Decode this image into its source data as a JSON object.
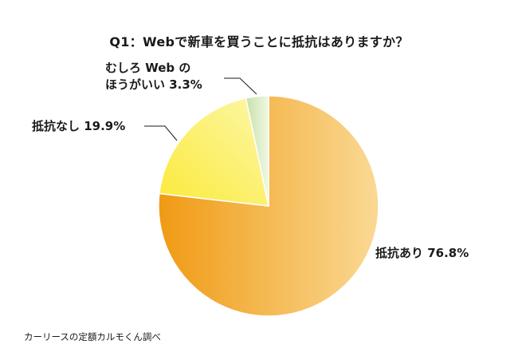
{
  "chart_data": {
    "type": "pie",
    "title": "Q1：Webで新車を買うことに抵抗はありますか？",
    "slices": [
      {
        "category": "抵抗あり",
        "value": 76.8,
        "label": "抵抗あり 76.8%",
        "color_start": "#f09a14",
        "color_end": "#fad994"
      },
      {
        "category": "抵抗なし",
        "value": 19.9,
        "label": "抵抗なし 19.9%",
        "color_start": "#fbea3a",
        "color_end": "#fcf7a8"
      },
      {
        "category": "むしろWebのほうがいい",
        "value": 3.3,
        "label_line1": "むしろ Web の",
        "label_line2": "ほうがいい 3.3%",
        "color_start": "#c6e0a8",
        "color_end": "#f0f8e4"
      }
    ],
    "start": "12 o'clock",
    "direction": "clockwise"
  },
  "source": "カーリースの定額カルモくん調べ"
}
